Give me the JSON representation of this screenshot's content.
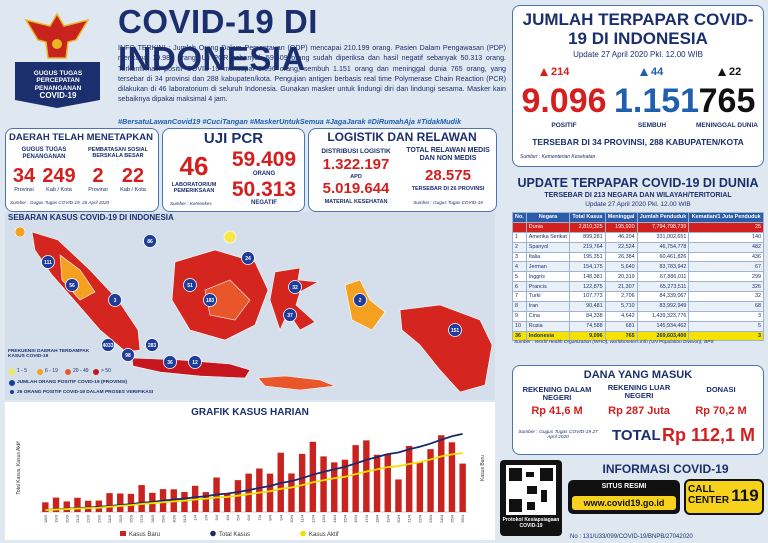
{
  "header": {
    "logo_text": "GUGUS TUGAS PERCEPATAN PENANGANAN",
    "logo_sub": "COVID-19",
    "title": "COVID-19 DI INDONESIA",
    "info": "INFO TERKINI : Jumlah Orang Dalam Pemantauan (ODP) mencapai 210.199 orang. Pasien Dalam Pengawasan (PDP) mencapai 19.987 orang. Uji PCR sebanyak 59.409 orang sudah diperiksa dan hasil negatif sebanyak 50.313 orang. Terkonfirmasi positif COVID-19 mencapai 9.096 orang, sembuh 1.151 orang dan meninggal dunia 765 orang, yang tersebar di 34 provinsi dan 288 kabupaten/kota. Pengujian antigen berbasis real time Polymerase Chain Reaction (PCR) dilakukan di 46 laboratorium di seluruh Indonesia. Gunakan masker untuk lindungi diri dan lindungi sesama. Masker kain sebaiknya dipakai maksimal 4 jam.",
    "hashtags": "#BersatuLawanCovid19 #CuciTangan #MaskerUntukSemua #JagaJarak #DiRumahAja #TidakMudik"
  },
  "daerah": {
    "title": "DAERAH TELAH MENETAPKAN",
    "gugus_label": "GUGUS TUGAS PENANGANAN",
    "gugus_prov": "34",
    "gugus_prov_unit": "Provinsi",
    "gugus_kab": "249",
    "gugus_kab_unit": "Kab / Kota",
    "psbb_label": "PEMBATASAN SOSIAL BERSKALA BESAR",
    "psbb_prov": "2",
    "psbb_prov_unit": "Provinsi",
    "psbb_kab": "22",
    "psbb_kab_unit": "Kab / Kota",
    "source": "Sumber : Gugus Tugas COVID-19, 26 April 2020"
  },
  "pcr": {
    "title": "UJI PCR",
    "labs": "46",
    "labs_label": "LABORATORIUM PEMERIKSAAN",
    "tested": "59.409",
    "tested_label": "ORANG",
    "negative": "50.313",
    "negative_label": "NEGATIF",
    "source": "Sumber : Kemenkes"
  },
  "logistik": {
    "title": "LOGISTIK DAN RELAWAN",
    "dist_label": "DISTRIBUSI LOGISTIK",
    "apd": "1.322.197",
    "apd_label": "APD",
    "material": "5.019.644",
    "material_label": "MATERIAL KESEHATAN",
    "relawan_label": "TOTAL RELAWAN MEDIS DAN NON MEDIS",
    "relawan": "28.575",
    "relawan_sub": "TERSEBAR DI 26 PROVINSI",
    "source": "Sumber : Gugus Tugas COVID-19"
  },
  "map": {
    "title": "SEBARAN KASUS COVID-19 DI INDONESIA",
    "legend_title": "FREKUENSI DAERAH TERDAMPAK KASUS COVID-19",
    "legend": [
      "1 - 5",
      "6 - 19",
      "20 - 49",
      "> 50"
    ],
    "bubble_label": "JUMLAH ORANG POSITIF COVID-19 (PROVINSI)",
    "verify_label": "26 ORANG POSITIF COVID-19 DALAM PROSES VERIFIKASI",
    "bubbles": [
      "86",
      "111",
      "56",
      "3",
      "51",
      "24",
      "183",
      "32",
      "283",
      "98",
      "4033",
      "36",
      "12",
      "151",
      "37",
      "2"
    ]
  },
  "chart_data": {
    "type": "bar-line",
    "title": "GRAFIK KASUS HARIAN",
    "y_label": "Total Kasus, Kasus Aktif",
    "y2_label": "Kasus Baru",
    "categories": [
      "18/3",
      "19/3",
      "20/3",
      "21/3",
      "22/3",
      "23/3",
      "24/3",
      "25/3",
      "26/3",
      "27/3",
      "28/3",
      "29/3",
      "30/3",
      "31/3",
      "1/4",
      "2/4",
      "3/4",
      "4/4",
      "5/4",
      "6/4",
      "7/4",
      "8/4",
      "9/4",
      "10/4",
      "11/4",
      "12/4",
      "13/4",
      "14/4",
      "15/4",
      "16/4",
      "17/4",
      "18/4",
      "19/4",
      "20/4",
      "21/4",
      "22/4",
      "23/4",
      "24/4",
      "25/4",
      "26/4"
    ],
    "ylim": [
      0,
      10000
    ],
    "y2lim": [
      0,
      500
    ],
    "series": [
      {
        "name": "Kasus Baru",
        "color": "#c8231f",
        "axis": "y2",
        "values": [
          55,
          82,
          60,
          81,
          64,
          65,
          107,
          105,
          103,
          153,
          109,
          130,
          129,
          114,
          149,
          113,
          196,
          106,
          181,
          218,
          247,
          218,
          337,
          219,
          330,
          399,
          316,
          282,
          297,
          380,
          407,
          325,
          327,
          185,
          375,
          283,
          357,
          436,
          396,
          275
        ]
      },
      {
        "name": "Total Kasus",
        "color": "#1b2a6b",
        "values": [
          227,
          309,
          369,
          450,
          514,
          579,
          686,
          790,
          893,
          1046,
          1155,
          1285,
          1414,
          1528,
          1677,
          1790,
          1986,
          2092,
          2273,
          2491,
          2738,
          2956,
          3293,
          3512,
          3842,
          4241,
          4557,
          4839,
          5136,
          5516,
          5923,
          6248,
          6575,
          6760,
          7135,
          7418,
          7775,
          8211,
          8607,
          8882
        ]
      },
      {
        "name": "Kasus Aktif",
        "color": "#f0e000",
        "values": [
          206,
          275,
          326,
          392,
          439,
          485,
          592,
          688,
          778,
          911,
          1000,
          1107,
          1208,
          1285,
          1417,
          1508,
          1647,
          1712,
          1853,
          2025,
          2201,
          2362,
          2642,
          2786,
          3054,
          3380,
          3610,
          3833,
          3997,
          4306,
          4595,
          4848,
          5108,
          5204,
          5458,
          5658,
          5973,
          6319,
          6548,
          6697
        ]
      }
    ]
  },
  "summary": {
    "title": "JUMLAH TERPAPAR COVID-19 DI INDONESIA",
    "update": "Update 27 April 2020 Pkl. 12.00 WIB",
    "positif_delta": "214",
    "positif": "9.096",
    "positif_label": "POSITIF",
    "sembuh_delta": "44",
    "sembuh": "1.151",
    "sembuh_label": "SEMBUH",
    "meninggal_delta": "22",
    "meninggal": "765",
    "meninggal_label": "MENINGGAL DUNIA",
    "spread": "TERSEBAR DI 34 PROVINSI, 288 KABUPATEN/KOTA",
    "source": "Sumber : Kementerian Kesehatan"
  },
  "world": {
    "title": "UPDATE TERPAPAR COVID-19 DI DUNIA",
    "subtitle": "TERSEBAR DI 213 NEGARA DAN WILAYAH/TERITORIAL",
    "update": "Update 27 April 2020 Pkl. 12.00 WIB",
    "table": {
      "header": [
        "No.",
        "Negara",
        "Total Kasus",
        "Meninggal",
        "Jumlah Penduduk",
        "Kematian/1 Juta Penduduk"
      ],
      "rows": [
        [
          "",
          "Dunia",
          "2,810,325",
          "195,920",
          "7,794,798,739",
          "25"
        ],
        [
          "1",
          "Amerika Serikat",
          "899,281",
          "46,204",
          "331,002,651",
          "140"
        ],
        [
          "2",
          "Spanyol",
          "219,764",
          "22,524",
          "46,754,778",
          "482"
        ],
        [
          "3",
          "Italia",
          "195,351",
          "26,384",
          "60,461,826",
          "436"
        ],
        [
          "4",
          "Jerman",
          "154,175",
          "5,640",
          "83,783,942",
          "67"
        ],
        [
          "5",
          "Inggris",
          "148,381",
          "20,319",
          "67,886,011",
          "299"
        ],
        [
          "6",
          "Prancis",
          "122,875",
          "21,307",
          "65,273,511",
          "326"
        ],
        [
          "7",
          "Turki",
          "107,773",
          "2,706",
          "84,339,067",
          "32"
        ],
        [
          "8",
          "Iran",
          "90,481",
          "5,710",
          "83,992,949",
          "68"
        ],
        [
          "9",
          "Cina",
          "84,338",
          "4,642",
          "1,439,323,776",
          "3"
        ],
        [
          "10",
          "Rusia",
          "74,588",
          "681",
          "145,934,462",
          "5"
        ],
        [
          "36",
          "Indonesia",
          "9,096",
          "765",
          "269,603,400",
          "3"
        ]
      ]
    },
    "source": "Sumber : World Health Organization (WHO), worldometers.info (UN Population Division), BPS"
  },
  "dana": {
    "title": "DANA YANG MASUK",
    "dn_label": "REKENING DALAM NEGERI",
    "dn": "Rp 41,6 M",
    "ln_label": "REKENING LUAR NEGERI",
    "ln": "Rp 287 Juta",
    "donasi_label": "DONASI",
    "donasi": "Rp 70,2 M",
    "source": "Sumber : Gugus Tugas COVID-19 27 April 2020",
    "total_label": "TOTAL",
    "total": "Rp 112,1 M"
  },
  "info_covid": {
    "title": "INFORMASI COVID-19",
    "qr_label": "Protokol Kesiapsiagaan COVID-19",
    "site_label": "SITUS RESMI",
    "site": "www.covid19.go.id",
    "call_label": "CALL CENTER",
    "call": "119"
  },
  "footer": "No : 131/U33/099/COVID-19/BNPB/27042020"
}
